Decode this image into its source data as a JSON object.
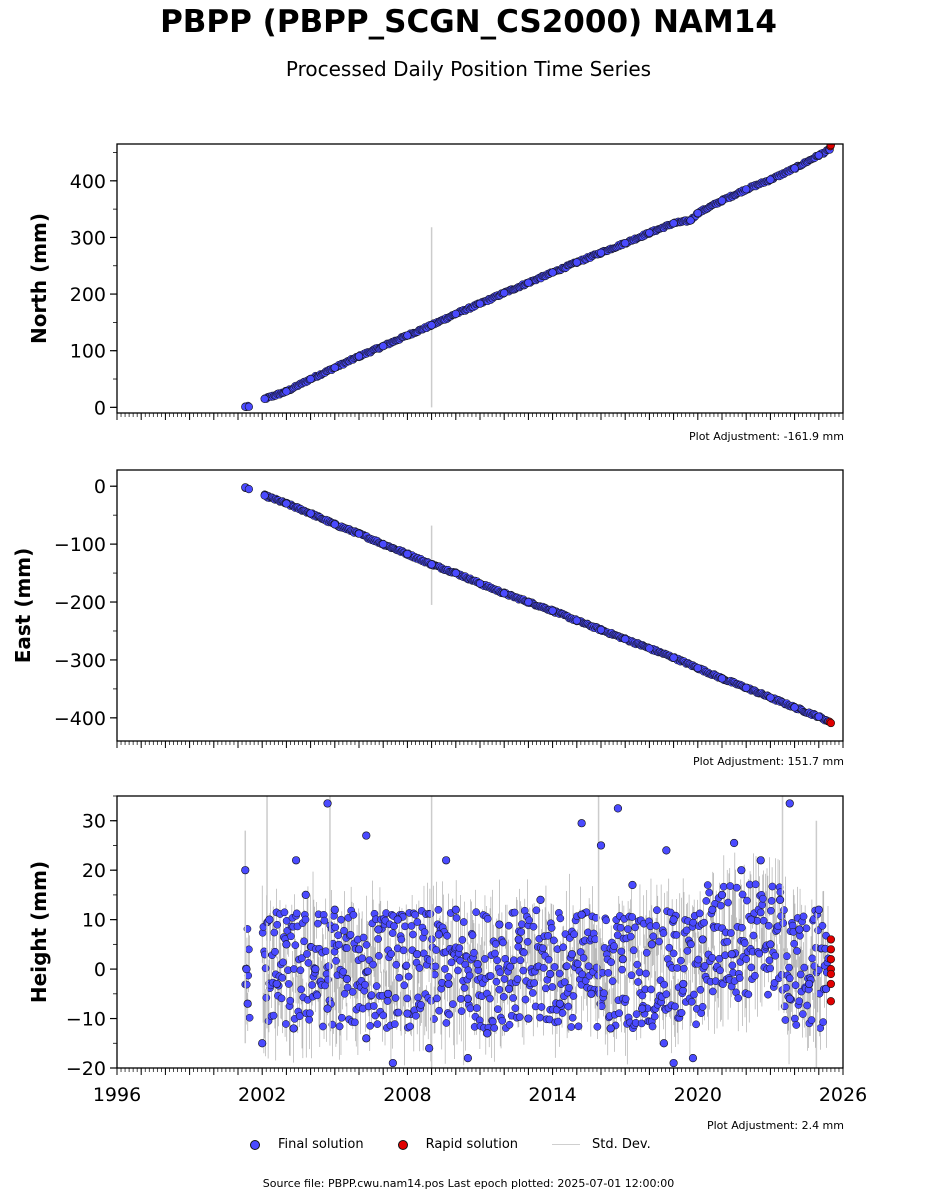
{
  "title": "PBPP (PBPP_SCGN_CS2000) NAM14",
  "subtitle": "Processed Daily Position Time Series",
  "legend": {
    "final": "Final solution",
    "rapid": "Rapid solution",
    "std": "Std. Dev."
  },
  "footer": "Source file: PBPP.cwu.nam14.pos  Last epoch plotted: 2025-07-01 12:00:00",
  "colors": {
    "final": "#4a4aff",
    "rapid": "#e00000",
    "std": "#cccccc",
    "marker_edge": "#111111"
  },
  "chart_data": [
    {
      "type": "scatter",
      "ylabel": "North (mm)",
      "adjustment": "Plot Adjustment: -161.9 mm",
      "xlim": [
        1996,
        2026
      ],
      "ylim": [
        -10,
        465
      ],
      "yticks": [
        0,
        100,
        200,
        300,
        400
      ],
      "ytick_labels": [
        "0",
        "100",
        "200",
        "300",
        "400"
      ],
      "series": [
        {
          "kind": "final",
          "x": [
            2001.3,
            2001.45,
            2002.1,
            2003.0,
            2004.0,
            2005.0,
            2006.0,
            2007.0,
            2008.0,
            2009.0,
            2010.0,
            2011.0,
            2012.0,
            2013.0,
            2014.0,
            2015.0,
            2016.0,
            2017.0,
            2018.0,
            2019.0,
            2019.7,
            2020.0,
            2021.0,
            2022.0,
            2023.0,
            2024.0,
            2025.0,
            2025.45
          ],
          "y": [
            1,
            1,
            15,
            28,
            50,
            70,
            90,
            108,
            127,
            145,
            165,
            183,
            202,
            220,
            238,
            256,
            273,
            290,
            308,
            325,
            330,
            343,
            365,
            385,
            402,
            422,
            445,
            455
          ]
        },
        {
          "kind": "rapid",
          "x": [
            2025.48,
            2025.5
          ],
          "y": [
            461,
            463
          ]
        }
      ],
      "stddev": [
        {
          "x": 2009.0,
          "low": 0,
          "high": 318
        }
      ]
    },
    {
      "type": "scatter",
      "ylabel": "East (mm)",
      "adjustment": "Plot Adjustment: 151.7 mm",
      "xlim": [
        1996,
        2026
      ],
      "ylim": [
        -440,
        28
      ],
      "yticks": [
        0,
        -100,
        -200,
        -300,
        -400
      ],
      "ytick_labels": [
        "0",
        "−100",
        "−200",
        "−300",
        "−400"
      ],
      "series": [
        {
          "kind": "final",
          "x": [
            2001.3,
            2001.45,
            2002.1,
            2003.0,
            2004.0,
            2005.0,
            2006.0,
            2007.0,
            2008.0,
            2009.0,
            2010.0,
            2011.0,
            2012.0,
            2013.0,
            2014.0,
            2015.0,
            2016.0,
            2017.0,
            2018.0,
            2019.0,
            2020.0,
            2021.0,
            2022.0,
            2023.0,
            2024.0,
            2025.0,
            2025.4
          ],
          "y": [
            -2,
            -5,
            -16,
            -30,
            -47,
            -66,
            -82,
            -100,
            -117,
            -135,
            -150,
            -168,
            -185,
            -200,
            -215,
            -232,
            -248,
            -264,
            -280,
            -296,
            -314,
            -332,
            -348,
            -365,
            -382,
            -398,
            -406
          ]
        },
        {
          "kind": "rapid",
          "x": [
            2025.45,
            2025.5
          ],
          "y": [
            -407,
            -409
          ]
        }
      ],
      "stddev": [
        {
          "x": 2009.0,
          "low": -205,
          "high": -68
        }
      ]
    },
    {
      "type": "scatter",
      "ylabel": "Height (mm)",
      "adjustment": "Plot Adjustment: 2.4 mm",
      "xlim": [
        1996,
        2026
      ],
      "ylim": [
        -20,
        35
      ],
      "yticks": [
        30,
        20,
        10,
        0,
        -10,
        -20
      ],
      "ytick_labels": [
        "30",
        "20",
        "10",
        "0",
        "−10",
        "−20"
      ],
      "xticks": [
        1996,
        2002,
        2008,
        2014,
        2020,
        2026
      ],
      "xtick_labels": [
        "1996",
        "2002",
        "2008",
        "2014",
        "2020",
        "2026"
      ],
      "series": [
        {
          "kind": "final",
          "x": [
            2001.3,
            2001.35,
            2001.4,
            2002.0,
            2002.3,
            2002.6,
            2003.0,
            2003.3,
            2003.8,
            2004.2,
            2004.7,
            2005.0,
            2005.5,
            2006.0,
            2006.3,
            2006.8,
            2007.2,
            2007.6,
            2008.0,
            2008.4,
            2008.9,
            2009.3,
            2009.7,
            2010.0,
            2010.5,
            2010.9,
            2011.3,
            2011.8,
            2012.2,
            2012.6,
            2013.0,
            2013.5,
            2013.9,
            2014.3,
            2014.8,
            2015.2,
            2015.6,
            2016.0,
            2016.4,
            2016.9,
            2017.3,
            2017.7,
            2018.1,
            2018.6,
            2019.0,
            2019.4,
            2019.8,
            2020.2,
            2020.6,
            2021.0,
            2021.4,
            2021.8,
            2022.2,
            2022.6,
            2023.0,
            2023.4,
            2023.8,
            2024.2,
            2024.6,
            2025.0,
            2025.3,
            2004.7,
            2006.3,
            2015.2,
            2016.7,
            2023.8,
            2003.4,
            2009.6,
            2018.7,
            2021.5,
            2010.5,
            2019.0,
            2007.4
          ],
          "y": [
            20,
            0,
            -7,
            -15,
            10,
            -3,
            5,
            -12,
            15,
            0,
            -8,
            12,
            -2,
            4,
            -14,
            8,
            -5,
            10,
            -9,
            3,
            -16,
            7,
            -3,
            12,
            -6,
            1,
            -13,
            9,
            -4,
            6,
            -10,
            14,
            -1,
            -7,
            3,
            11,
            -5,
            25,
            -12,
            2,
            17,
            -8,
            5,
            -15,
            10,
            -3,
            -18,
            6,
            12,
            15,
            3,
            20,
            10,
            22,
            5,
            14,
            -6,
            8,
            -3,
            12,
            -4,
            33.5,
            27,
            29.5,
            32.5,
            33.5,
            22,
            22,
            24,
            25.5,
            -18,
            -19,
            -19
          ]
        },
        {
          "kind": "rapid",
          "x": [
            2025.5,
            2025.5,
            2025.5,
            2025.5,
            2025.5,
            2025.5,
            2025.5
          ],
          "y": [
            6,
            4,
            2,
            0,
            -1,
            -3,
            -6.5
          ]
        }
      ],
      "stddev": [
        {
          "x": 2001.3,
          "low": -15,
          "high": 28
        },
        {
          "x": 2002.2,
          "low": -12,
          "high": 35
        },
        {
          "x": 2004.8,
          "low": -12,
          "high": 35
        },
        {
          "x": 2009.0,
          "low": -20,
          "high": 35
        },
        {
          "x": 2015.9,
          "low": -10,
          "high": 35
        },
        {
          "x": 2023.5,
          "low": -8,
          "high": 35
        },
        {
          "x": 2024.9,
          "low": -20,
          "high": 30
        }
      ]
    }
  ]
}
